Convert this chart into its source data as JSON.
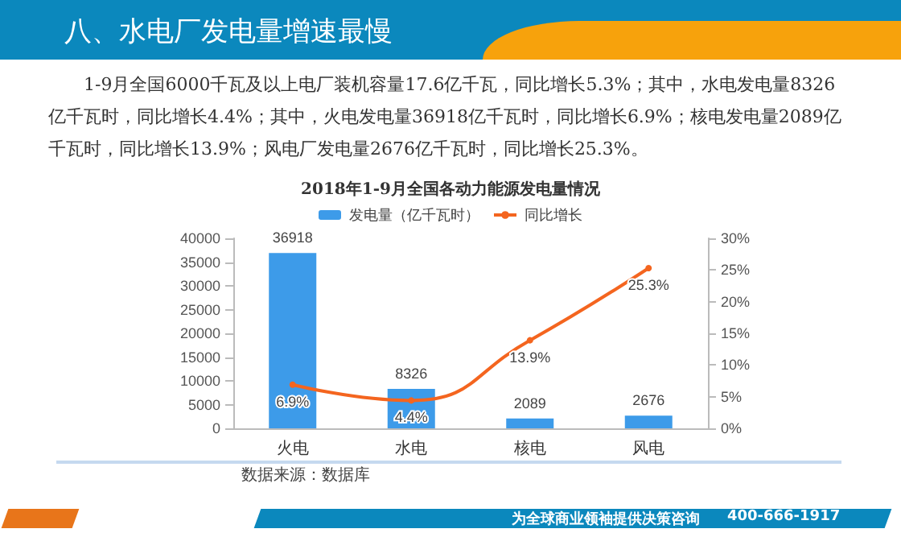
{
  "chart_data": {
    "type": "bar",
    "title": "2018年1-9月全国各动力能源发电量情况",
    "subtitle": "1-9月全国6000千瓦及以上电厂装机容量17.6亿千瓦，同比增长5.3%；其中，水电发电量8326亿千瓦时，同比增长4.4%；其中，火电发电量36918亿千瓦时，同比增长6.9%；核电发电量2089亿千瓦时，同比增长13.9%；风电厂发电量2676亿千瓦时，同比增长25.3%。",
    "annotations": [
      "八、水电厂发电量增速最慢",
      "数据来源：数据库",
      "为全球商业领袖提供决策咨询",
      "400-666-1917"
    ],
    "categories": [
      "火电",
      "水电",
      "核电",
      "风电"
    ],
    "series": [
      {
        "name": "发电量（亿千瓦时）",
        "color": "#3d9be9",
        "values": [
          36918,
          8326,
          2089,
          2676
        ],
        "value_labels": [
          "36918",
          "8326",
          "2089",
          "2676"
        ]
      },
      {
        "name": "同比增长",
        "type": "line",
        "axis": "y2",
        "color": "#f4651f",
        "values": [
          6.9,
          4.4,
          13.9,
          25.3
        ],
        "value_labels": [
          "6.9%",
          "4.4%",
          "13.9%",
          "25.3%"
        ]
      }
    ],
    "ylim": [
      0,
      40000
    ],
    "yticks": [
      0,
      5000,
      10000,
      15000,
      20000,
      25000,
      30000,
      35000,
      40000
    ],
    "y2lim": [
      0,
      30
    ],
    "y2ticks": [
      {
        "value": 0,
        "label": "0%"
      },
      {
        "value": 5,
        "label": "5%"
      },
      {
        "value": 10,
        "label": "10%"
      },
      {
        "value": 15,
        "label": "15%"
      },
      {
        "value": 20,
        "label": "20%"
      },
      {
        "value": 25,
        "label": "25%"
      },
      {
        "value": 30,
        "label": "30%"
      }
    ],
    "grid": false,
    "legend": "top",
    "marker": "circle",
    "line_style": "solid"
  }
}
